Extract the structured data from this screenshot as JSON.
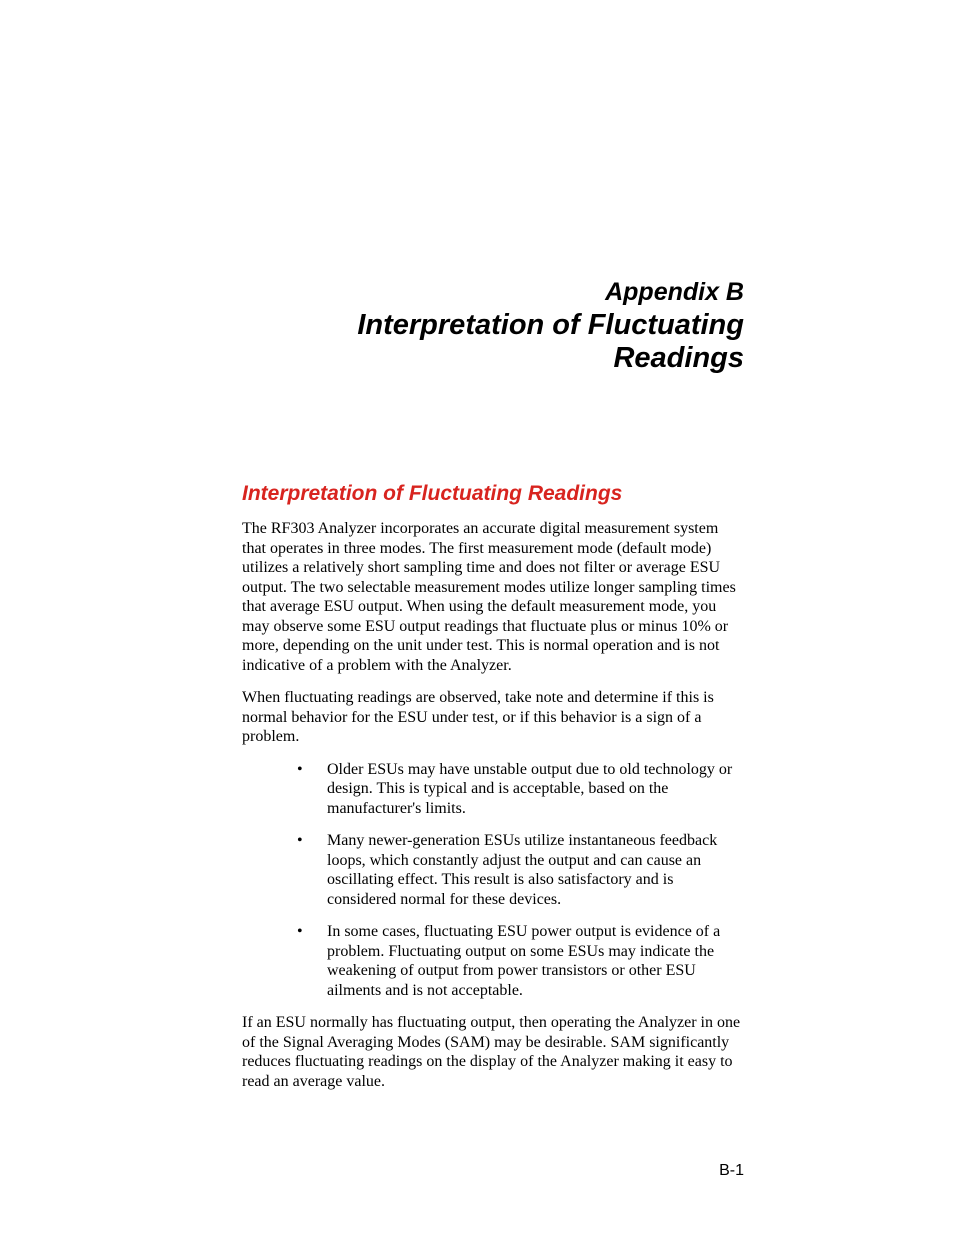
{
  "colors": {
    "background": "#ffffff",
    "body_text": "#000000",
    "heading_accent": "#d8241f"
  },
  "typography": {
    "heading_font": "Arial, Helvetica, sans-serif",
    "body_font": "Times New Roman, Times, serif",
    "appendix_label_size_pt": 18,
    "appendix_title_size_pt": 22,
    "section_heading_size_pt": 16,
    "body_size_pt": 12,
    "page_number_size_pt": 12
  },
  "title_block": {
    "appendix_label": "Appendix B",
    "appendix_title": "Interpretation of Fluctuating Readings"
  },
  "section": {
    "heading": "Interpretation of Fluctuating Readings",
    "para1": "The RF303 Analyzer incorporates an accurate digital measurement system that operates in three modes. The first measurement mode (default mode) utilizes a relatively short sampling time and does not filter or average ESU output. The two selectable measurement modes utilize longer sampling times that average ESU output. When using the default measurement mode, you may observe some ESU output readings that fluctuate plus or minus 10% or more, depending on the unit under test. This is normal operation and is not indicative of a problem with the Analyzer.",
    "para2": "When fluctuating readings are observed, take note and determine if this is normal behavior for the ESU under test, or if this behavior is a sign of a problem.",
    "bullets": [
      "Older ESUs may have unstable output due to old technology or design. This is typical and is acceptable, based on the manufacturer's limits.",
      "Many newer-generation ESUs utilize instantaneous feedback loops, which constantly adjust the output and can cause an oscillating effect. This result is also satisfactory and is considered normal for these devices.",
      "In some cases, fluctuating ESU power output is evidence of a problem. Fluctuating output on some ESUs may indicate the weakening of output from power transistors or other ESU ailments and is not acceptable."
    ],
    "para3": "If an ESU normally has fluctuating output, then operating the Analyzer in one of the Signal Averaging Modes (SAM) may be desirable. SAM significantly reduces fluctuating readings on the display of the Analyzer making it easy to read an average value."
  },
  "page_number": "B-1"
}
